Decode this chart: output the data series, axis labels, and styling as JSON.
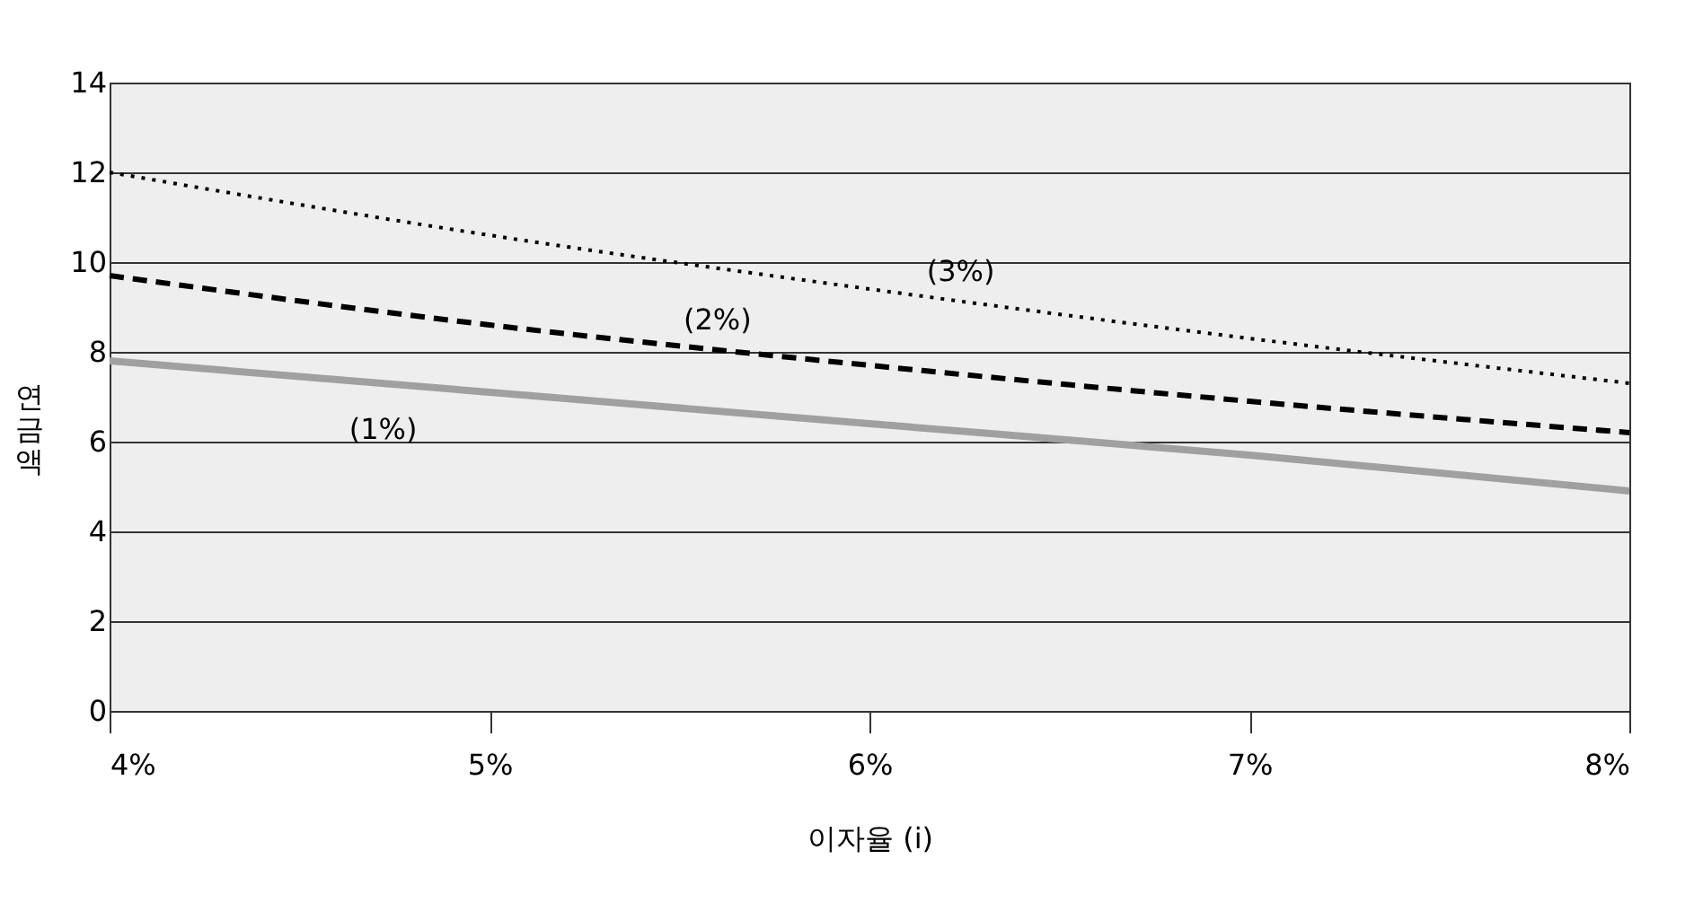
{
  "chart_data": {
    "type": "line",
    "xlabel": "이자율 (i)",
    "ylabel": "연금액",
    "x": [
      4,
      5,
      6,
      7,
      8
    ],
    "xlim": [
      4,
      8
    ],
    "xticks": [
      {
        "value": 4,
        "label": "4%"
      },
      {
        "value": 5,
        "label": "5%"
      },
      {
        "value": 6,
        "label": "6%"
      },
      {
        "value": 7,
        "label": "7%"
      },
      {
        "value": 8,
        "label": "8%"
      }
    ],
    "ylim": [
      0,
      14
    ],
    "yticks": [
      0,
      2,
      4,
      6,
      8,
      10,
      12,
      14
    ],
    "grid": "y",
    "marker": "none",
    "series": [
      {
        "name": "(1%)",
        "color": "#a0a0a0",
        "line_style": "solid",
        "values": [
          7.8,
          7.1,
          6.4,
          5.7,
          4.9
        ]
      },
      {
        "name": "(2%)",
        "color": "#000000",
        "line_style": "dashed",
        "values": [
          9.7,
          8.6,
          7.7,
          6.9,
          6.2
        ]
      },
      {
        "name": "(3%)",
        "color": "#000000",
        "line_style": "dotted",
        "values": [
          12.0,
          10.6,
          9.4,
          8.3,
          7.3
        ]
      }
    ],
    "legend": false
  }
}
